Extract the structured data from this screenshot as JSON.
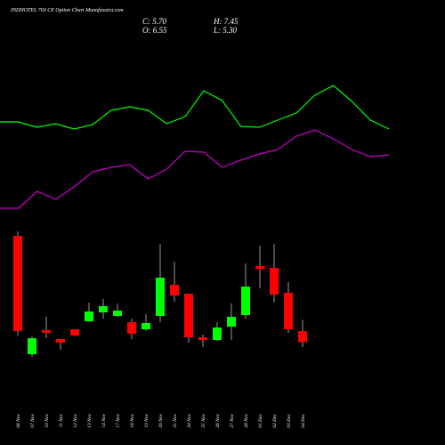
{
  "header": {
    "title": "INDHOTEL 760 CE Option Chart Munafasutra.com",
    "close": "C: 5.70",
    "open": "O: 6.55",
    "high": "H: 7.45",
    "low": "L: 5.30"
  },
  "chart_data": [
    {
      "type": "line",
      "categories": [
        null,
        null,
        null,
        null,
        null,
        null,
        null,
        null,
        null,
        null,
        null,
        null,
        null,
        null,
        null,
        null,
        null,
        null,
        null,
        null,
        null,
        null
      ],
      "ylim": [
        0,
        220
      ],
      "series": [
        {
          "color": "#00ff00",
          "values": [
            163,
            163,
            157,
            161,
            155,
            160,
            176,
            180,
            176,
            161,
            169,
            198,
            187,
            158,
            157,
            165,
            173,
            193,
            204,
            186,
            165,
            155
          ]
        },
        {
          "color": "#cc00cc",
          "values": [
            66,
            66,
            85,
            76,
            90,
            107,
            112,
            115,
            99,
            110,
            130,
            129,
            112,
            120,
            127,
            132,
            147,
            154,
            144,
            132,
            124,
            126
          ]
        }
      ]
    },
    {
      "type": "candlestick",
      "categories": [
        "06 Nov",
        "07 Nov",
        "10 Nov",
        "11 Nov",
        "12 Nov",
        "13 Nov",
        "14 Nov",
        "17 Nov",
        "18 Nov",
        "19 Nov",
        "20 Nov",
        "21 Nov",
        "24 Nov",
        "25 Nov",
        "26 Nov",
        "27 Nov",
        "28 Nov",
        "01 Dec",
        "02 Dec",
        "03 Dec",
        "04 Dec"
      ],
      "ylim": [
        4.6,
        15.1
      ],
      "up_color": "#00ff00",
      "down_color": "#ff0000",
      "wick_color": "#999999",
      "open": [
        14.05,
        4.74,
        6.63,
        5.93,
        6.7,
        7.33,
        8.03,
        7.75,
        7.26,
        6.7,
        7.75,
        10.2,
        9.5,
        6.07,
        5.86,
        6.91,
        7.82,
        11.67,
        11.53,
        9.57,
        6.55
      ],
      "high": [
        14.4,
        6.14,
        7.68,
        5.93,
        6.7,
        8.8,
        9.08,
        8.73,
        7.54,
        7.89,
        13.42,
        12.02,
        9.5,
        6.28,
        7.26,
        8.73,
        11.88,
        13.28,
        13.42,
        10.41,
        7.45
      ],
      "low": [
        6.2,
        4.53,
        6.0,
        5.09,
        6.21,
        7.33,
        7.54,
        7.68,
        5.93,
        6.56,
        7.26,
        8.87,
        5.65,
        5.3,
        5.79,
        5.86,
        7.54,
        9.92,
        8.8,
        6.42,
        5.3
      ],
      "close": [
        6.56,
        6.0,
        6.42,
        5.65,
        6.21,
        8.1,
        8.52,
        8.17,
        6.35,
        7.19,
        10.76,
        9.36,
        6.07,
        5.86,
        6.84,
        7.68,
        10.06,
        11.46,
        9.43,
        6.7,
        5.7
      ]
    }
  ]
}
